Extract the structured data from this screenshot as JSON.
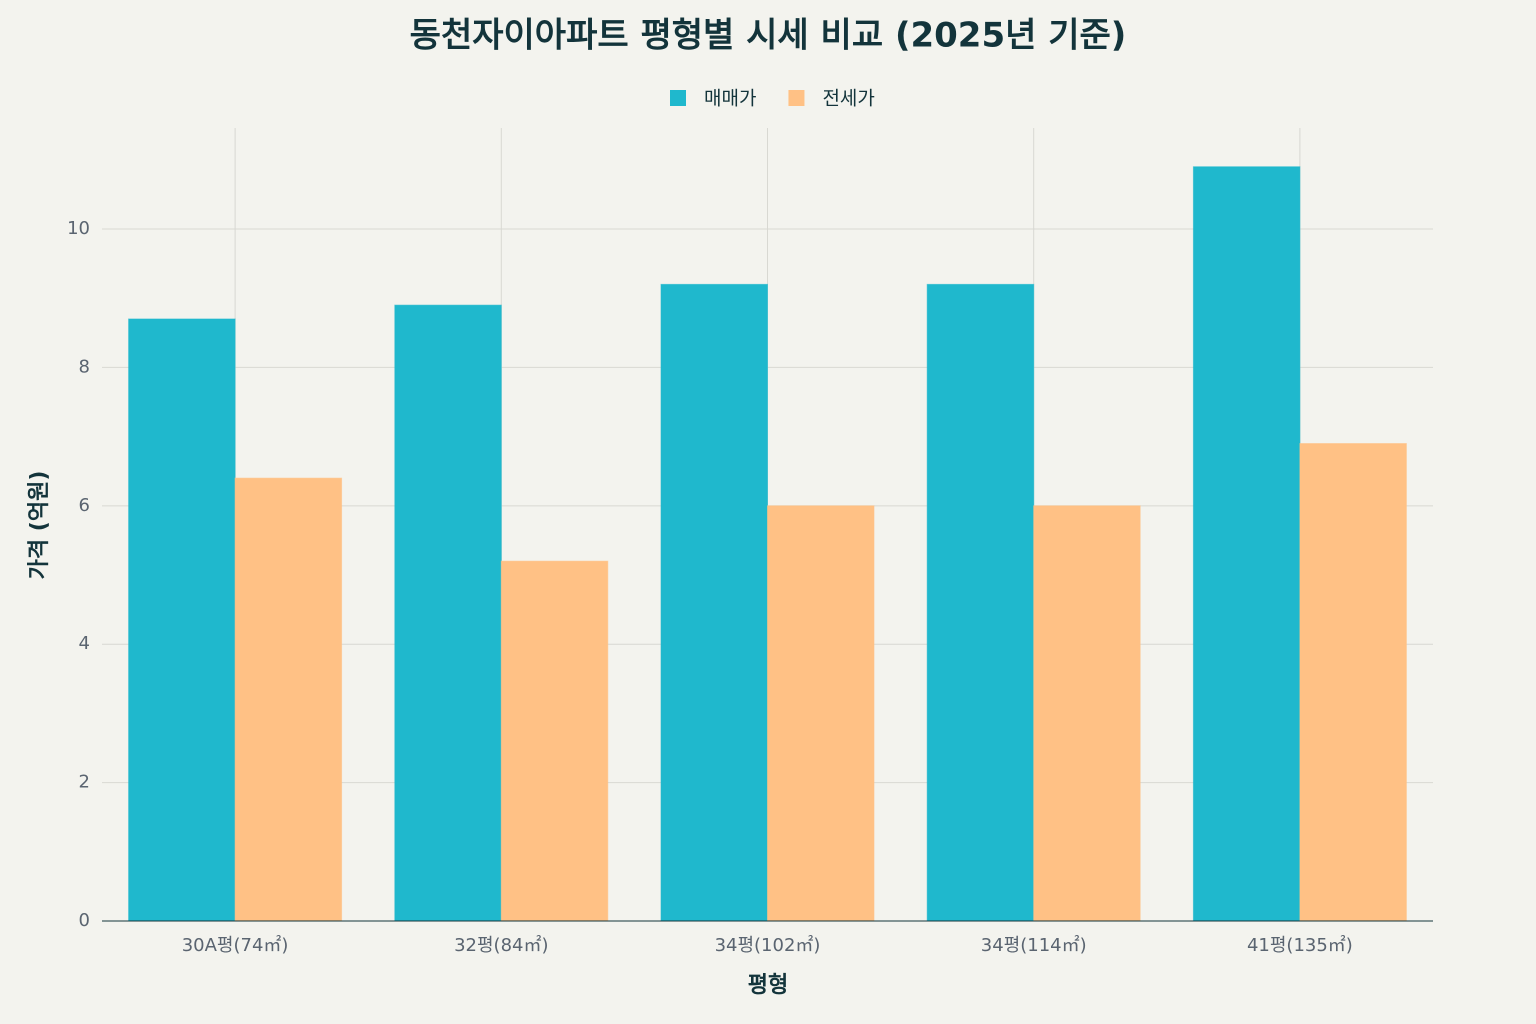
{
  "chart_data": {
    "type": "bar",
    "title": "동천자이아파트 평형별 시세 비교 (2025년 기준)",
    "x_label": "평형",
    "y_label": "가격 (억원)",
    "categories": [
      "30A평(74㎡)",
      "32평(84㎡)",
      "34평(102㎡)",
      "34평(114㎡)",
      "41평(135㎡)"
    ],
    "series": [
      {
        "name": "매매가",
        "color": "#1FB8CD",
        "values": [
          8.7,
          8.9,
          9.2,
          9.2,
          10.9
        ]
      },
      {
        "name": "전세가",
        "color": "#FFC185",
        "values": [
          6.4,
          5.2,
          6.0,
          6.0,
          6.9
        ]
      }
    ],
    "ylim": [
      0,
      11.46
    ],
    "yticks": [
      0,
      2,
      4,
      6,
      8,
      10
    ],
    "grid": true,
    "legend": "top"
  }
}
